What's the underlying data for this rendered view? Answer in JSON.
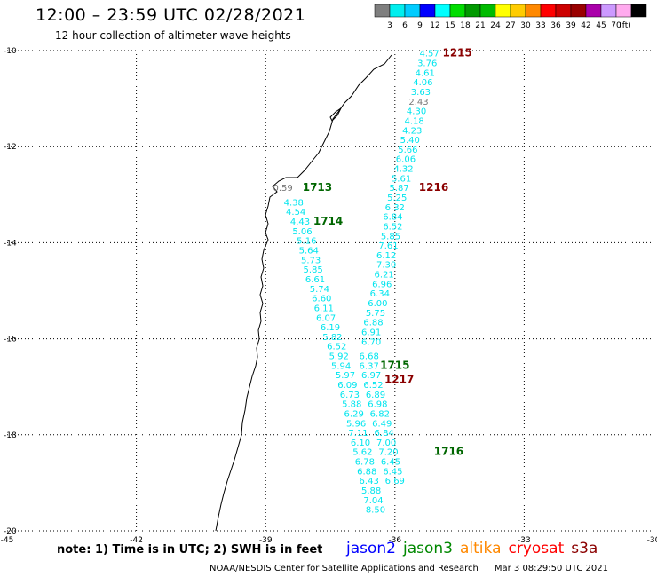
{
  "header": {
    "title": "12:00 – 23:59 UTC 02/28/2021",
    "subtitle": "12 hour collection of altimeter wave heights"
  },
  "colorbar": {
    "unit": "(ft)",
    "colors": [
      "#7f7f7f",
      "#00eeee",
      "#00ccff",
      "#0000ff",
      "#00ffff",
      "#00dd00",
      "#009900",
      "#00bb00",
      "#ffff00",
      "#ffcc00",
      "#ff8800",
      "#ff0000",
      "#cc0000",
      "#990000",
      "#aa00aa",
      "#cc99ff",
      "#ffaaee",
      "#000000"
    ],
    "labels": [
      "3",
      "6",
      "9",
      "12",
      "15",
      "18",
      "21",
      "24",
      "27",
      "30",
      "33",
      "36",
      "39",
      "42",
      "45",
      "70"
    ]
  },
  "map": {
    "lat_ticks": [
      "-10",
      "-12",
      "-14",
      "-16",
      "-18",
      "-20"
    ],
    "lon_ticks": [
      "-45",
      "-42",
      "-39",
      "-36",
      "-33",
      "-30"
    ],
    "gridlines": "dotted",
    "coastline_color": "#000000"
  },
  "tracks": [
    {
      "id": "track-east",
      "points": [
        {
          "v": "4.57",
          "c": "#00e5ee",
          "lat": -10.05,
          "lon": -35.2
        },
        {
          "v": "3.76",
          "c": "#00e5ee",
          "lat": -10.25,
          "lon": -35.25
        },
        {
          "v": "4.61",
          "c": "#00e5ee",
          "lat": -10.45,
          "lon": -35.3
        },
        {
          "v": "4.06",
          "c": "#00e5ee",
          "lat": -10.65,
          "lon": -35.35
        },
        {
          "v": "3.63",
          "c": "#00e5ee",
          "lat": -10.85,
          "lon": -35.4
        },
        {
          "v": "2.43",
          "c": "#777777",
          "lat": -11.05,
          "lon": -35.45
        },
        {
          "v": "4.30",
          "c": "#00e5ee",
          "lat": -11.25,
          "lon": -35.5
        },
        {
          "v": "4.18",
          "c": "#00e5ee",
          "lat": -11.45,
          "lon": -35.55
        },
        {
          "v": "4.23",
          "c": "#00e5ee",
          "lat": -11.65,
          "lon": -35.6
        },
        {
          "v": "5.40",
          "c": "#00e5ee",
          "lat": -11.85,
          "lon": -35.65
        },
        {
          "v": "5.66",
          "c": "#00e5ee",
          "lat": -12.05,
          "lon": -35.7
        },
        {
          "v": "6.06",
          "c": "#00e5ee",
          "lat": -12.25,
          "lon": -35.75
        },
        {
          "v": "4.32",
          "c": "#00e5ee",
          "lat": -12.45,
          "lon": -35.8
        },
        {
          "v": "5.61",
          "c": "#00e5ee",
          "lat": -12.65,
          "lon": -35.85
        },
        {
          "v": "5.87",
          "c": "#00e5ee",
          "lat": -12.85,
          "lon": -35.9
        },
        {
          "v": "5.25",
          "c": "#00e5ee",
          "lat": -13.05,
          "lon": -35.95
        },
        {
          "v": "6.32",
          "c": "#00e5ee",
          "lat": -13.25,
          "lon": -36.0
        },
        {
          "v": "6.84",
          "c": "#00e5ee",
          "lat": -13.45,
          "lon": -36.05
        },
        {
          "v": "6.52",
          "c": "#00e5ee",
          "lat": -13.65,
          "lon": -36.05
        },
        {
          "v": "5.85",
          "c": "#00e5ee",
          "lat": -13.85,
          "lon": -36.1
        },
        {
          "v": "7.61",
          "c": "#00e5ee",
          "lat": -14.05,
          "lon": -36.15
        },
        {
          "v": "6.12",
          "c": "#00e5ee",
          "lat": -14.25,
          "lon": -36.2
        },
        {
          "v": "7.30",
          "c": "#00e5ee",
          "lat": -14.45,
          "lon": -36.2
        },
        {
          "v": "6.21",
          "c": "#00e5ee",
          "lat": -14.65,
          "lon": -36.25
        },
        {
          "v": "6.96",
          "c": "#00e5ee",
          "lat": -14.85,
          "lon": -36.3
        },
        {
          "v": "6.34",
          "c": "#00e5ee",
          "lat": -15.05,
          "lon": -36.35
        },
        {
          "v": "6.00",
          "c": "#00e5ee",
          "lat": -15.25,
          "lon": -36.4
        },
        {
          "v": "5.75",
          "c": "#00e5ee",
          "lat": -15.45,
          "lon": -36.45
        },
        {
          "v": "6.88",
          "c": "#00e5ee",
          "lat": -15.65,
          "lon": -36.5
        },
        {
          "v": "6.91",
          "c": "#00e5ee",
          "lat": -15.85,
          "lon": -36.55
        },
        {
          "v": "6.70",
          "c": "#00e5ee",
          "lat": -16.05,
          "lon": -36.55
        },
        {
          "v": "6.68",
          "c": "#00e5ee",
          "lat": -16.35,
          "lon": -36.6
        },
        {
          "v": "6.37",
          "c": "#00e5ee",
          "lat": -16.55,
          "lon": -36.6
        },
        {
          "v": "6.97",
          "c": "#00e5ee",
          "lat": -16.75,
          "lon": -36.55
        },
        {
          "v": "6.52",
          "c": "#00e5ee",
          "lat": -16.95,
          "lon": -36.5
        },
        {
          "v": "6.89",
          "c": "#00e5ee",
          "lat": -17.15,
          "lon": -36.45
        },
        {
          "v": "6.98",
          "c": "#00e5ee",
          "lat": -17.35,
          "lon": -36.4
        },
        {
          "v": "6.82",
          "c": "#00e5ee",
          "lat": -17.55,
          "lon": -36.35
        },
        {
          "v": "6.49",
          "c": "#00e5ee",
          "lat": -17.75,
          "lon": -36.3
        },
        {
          "v": "6.84",
          "c": "#00e5ee",
          "lat": -17.95,
          "lon": -36.25
        },
        {
          "v": "7.00",
          "c": "#00e5ee",
          "lat": -18.15,
          "lon": -36.2
        },
        {
          "v": "7.20",
          "c": "#00e5ee",
          "lat": -18.35,
          "lon": -36.15
        },
        {
          "v": "6.45",
          "c": "#00e5ee",
          "lat": -18.55,
          "lon": -36.1
        },
        {
          "v": "6.45",
          "c": "#00e5ee",
          "lat": -18.75,
          "lon": -36.05
        },
        {
          "v": "6.69",
          "c": "#00e5ee",
          "lat": -18.95,
          "lon": -36.0
        }
      ]
    },
    {
      "id": "track-west",
      "points": [
        {
          "v": "0.59",
          "c": "#777777",
          "lat": -12.85,
          "lon": -38.6
        },
        {
          "v": "4.38",
          "c": "#00e5ee",
          "lat": -13.15,
          "lon": -38.35
        },
        {
          "v": "4.54",
          "c": "#00e5ee",
          "lat": -13.35,
          "lon": -38.3
        },
        {
          "v": "4.43",
          "c": "#00e5ee",
          "lat": -13.55,
          "lon": -38.2
        },
        {
          "v": "5.06",
          "c": "#00e5ee",
          "lat": -13.75,
          "lon": -38.15
        },
        {
          "v": "5.16",
          "c": "#00e5ee",
          "lat": -13.95,
          "lon": -38.05
        },
        {
          "v": "5.64",
          "c": "#00e5ee",
          "lat": -14.15,
          "lon": -38.0
        },
        {
          "v": "5.73",
          "c": "#00e5ee",
          "lat": -14.35,
          "lon": -37.95
        },
        {
          "v": "5.85",
          "c": "#00e5ee",
          "lat": -14.55,
          "lon": -37.9
        },
        {
          "v": "6.61",
          "c": "#00e5ee",
          "lat": -14.75,
          "lon": -37.85
        },
        {
          "v": "5.74",
          "c": "#00e5ee",
          "lat": -14.95,
          "lon": -37.75
        },
        {
          "v": "6.60",
          "c": "#00e5ee",
          "lat": -15.15,
          "lon": -37.7
        },
        {
          "v": "6.11",
          "c": "#00e5ee",
          "lat": -15.35,
          "lon": -37.65
        },
        {
          "v": "6.07",
          "c": "#00e5ee",
          "lat": -15.55,
          "lon": -37.6
        },
        {
          "v": "6.19",
          "c": "#00e5ee",
          "lat": -15.75,
          "lon": -37.5
        },
        {
          "v": "5.82",
          "c": "#00e5ee",
          "lat": -15.95,
          "lon": -37.45
        },
        {
          "v": "6.52",
          "c": "#00e5ee",
          "lat": -16.15,
          "lon": -37.35
        },
        {
          "v": "5.92",
          "c": "#00e5ee",
          "lat": -16.35,
          "lon": -37.3
        },
        {
          "v": "5.94",
          "c": "#00e5ee",
          "lat": -16.55,
          "lon": -37.25
        },
        {
          "v": "5.97",
          "c": "#00e5ee",
          "lat": -16.75,
          "lon": -37.15
        },
        {
          "v": "6.09",
          "c": "#00e5ee",
          "lat": -16.95,
          "lon": -37.1
        },
        {
          "v": "6.73",
          "c": "#00e5ee",
          "lat": -17.15,
          "lon": -37.05
        },
        {
          "v": "5.88",
          "c": "#00e5ee",
          "lat": -17.35,
          "lon": -37.0
        },
        {
          "v": "6.29",
          "c": "#00e5ee",
          "lat": -17.55,
          "lon": -36.95
        },
        {
          "v": "5.96",
          "c": "#00e5ee",
          "lat": -17.75,
          "lon": -36.9
        },
        {
          "v": "7.11",
          "c": "#00e5ee",
          "lat": -17.95,
          "lon": -36.85
        },
        {
          "v": "6.10",
          "c": "#00e5ee",
          "lat": -18.15,
          "lon": -36.8
        },
        {
          "v": "5.62",
          "c": "#00e5ee",
          "lat": -18.35,
          "lon": -36.75
        },
        {
          "v": "6.78",
          "c": "#00e5ee",
          "lat": -18.55,
          "lon": -36.7
        },
        {
          "v": "6.88",
          "c": "#00e5ee",
          "lat": -18.75,
          "lon": -36.65
        },
        {
          "v": "6.43",
          "c": "#00e5ee",
          "lat": -18.95,
          "lon": -36.6
        },
        {
          "v": "5.88",
          "c": "#00e5ee",
          "lat": -19.15,
          "lon": -36.55
        },
        {
          "v": "7.04",
          "c": "#00e5ee",
          "lat": -19.35,
          "lon": -36.5
        },
        {
          "v": "8.50",
          "c": "#00e5ee",
          "lat": -19.55,
          "lon": -36.45
        }
      ]
    }
  ],
  "time_labels": [
    {
      "v": "1215",
      "c": "#8b0000",
      "lat": -10.05,
      "lon": -34.55
    },
    {
      "v": "1216",
      "c": "#8b0000",
      "lat": -12.85,
      "lon": -35.1
    },
    {
      "v": "1217",
      "c": "#8b0000",
      "lat": -16.85,
      "lon": -35.9
    },
    {
      "v": "1713",
      "c": "#006600",
      "lat": -12.85,
      "lon": -37.8
    },
    {
      "v": "1714",
      "c": "#006600",
      "lat": -13.55,
      "lon": -37.55
    },
    {
      "v": "1715",
      "c": "#006600",
      "lat": -16.55,
      "lon": -36.0
    },
    {
      "v": "1716",
      "c": "#006600",
      "lat": -18.35,
      "lon": -34.75
    }
  ],
  "notes": {
    "text": "note: 1) Time is in UTC; 2) SWH is in feet"
  },
  "satellites": [
    {
      "name": "jason2",
      "color": "#0000ff"
    },
    {
      "name": "jason3",
      "color": "#008800"
    },
    {
      "name": "altika",
      "color": "#ff8800"
    },
    {
      "name": "cryosat",
      "color": "#ff0000"
    },
    {
      "name": "s3a",
      "color": "#8b0000"
    }
  ],
  "footer": {
    "credit": "NOAA/NESDIS Center for Satellite Applications and Research",
    "timestamp": "Mar  3 08:29:50 UTC 2021"
  }
}
